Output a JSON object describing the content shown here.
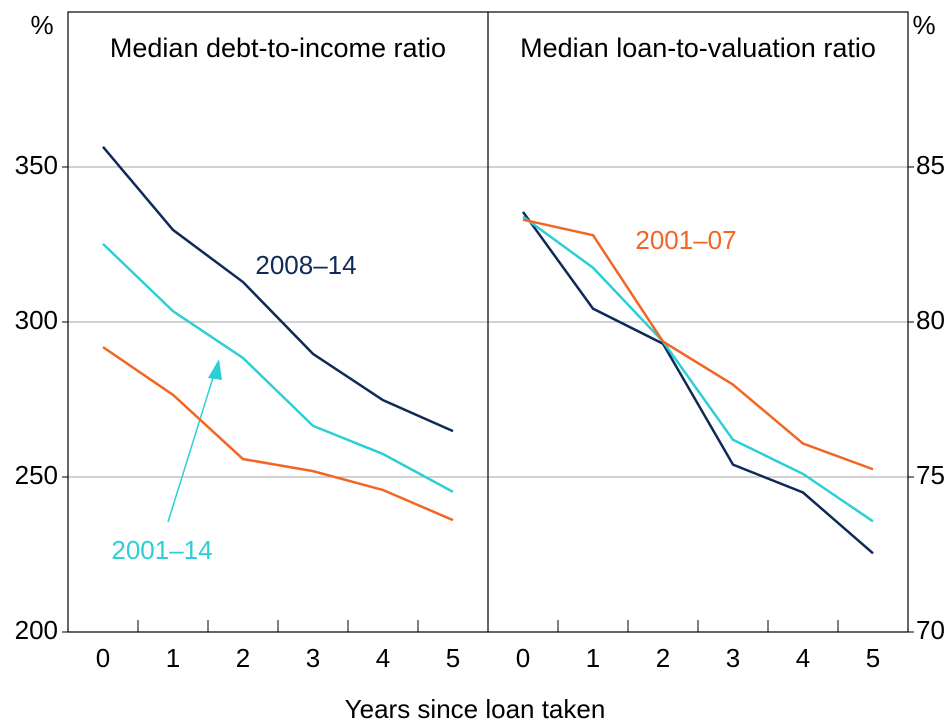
{
  "chart_data": [
    {
      "type": "line",
      "title": "Median debt-to-income ratio",
      "y_unit": "%",
      "x": [
        0,
        1,
        2,
        3,
        4,
        5
      ],
      "xlim": [
        -0.5,
        5.5
      ],
      "xticks": [
        0,
        1,
        2,
        3,
        4,
        5
      ],
      "ylim": [
        200,
        400
      ],
      "yticks": [
        200,
        250,
        300,
        350
      ],
      "grid": true,
      "series": [
        {
          "name": "2008–14",
          "color": "#0f2a57",
          "values": [
            356.5,
            329.7,
            312.9,
            289.7,
            274.8,
            264.8
          ]
        },
        {
          "name": "2001–14",
          "color": "#2ccfd6",
          "values": [
            325.2,
            303.5,
            288.4,
            266.5,
            257.4,
            245.2
          ]
        },
        {
          "color": "#f26522",
          "values": [
            291.9,
            276.5,
            255.8,
            251.9,
            245.8,
            236.1
          ]
        }
      ]
    },
    {
      "type": "line",
      "title": "Median loan-to-valuation ratio",
      "y_unit": "%",
      "x": [
        0,
        1,
        2,
        3,
        4,
        5
      ],
      "xlim": [
        -0.5,
        5.5
      ],
      "xticks": [
        0,
        1,
        2,
        3,
        4,
        5
      ],
      "ylim": [
        70,
        90
      ],
      "yticks": [
        70,
        75,
        80,
        85
      ],
      "grid": true,
      "series": [
        {
          "color": "#0f2a57",
          "values": [
            83.55,
            80.43,
            79.3,
            75.4,
            74.5,
            72.54
          ]
        },
        {
          "color": "#2ccfd6",
          "values": [
            83.4,
            81.75,
            79.37,
            76.2,
            75.1,
            73.57
          ]
        },
        {
          "name": "2001–07",
          "color": "#f26522",
          "values": [
            83.3,
            82.8,
            79.37,
            77.98,
            76.08,
            75.25
          ]
        }
      ]
    }
  ],
  "x_label": "Years since loan taken"
}
